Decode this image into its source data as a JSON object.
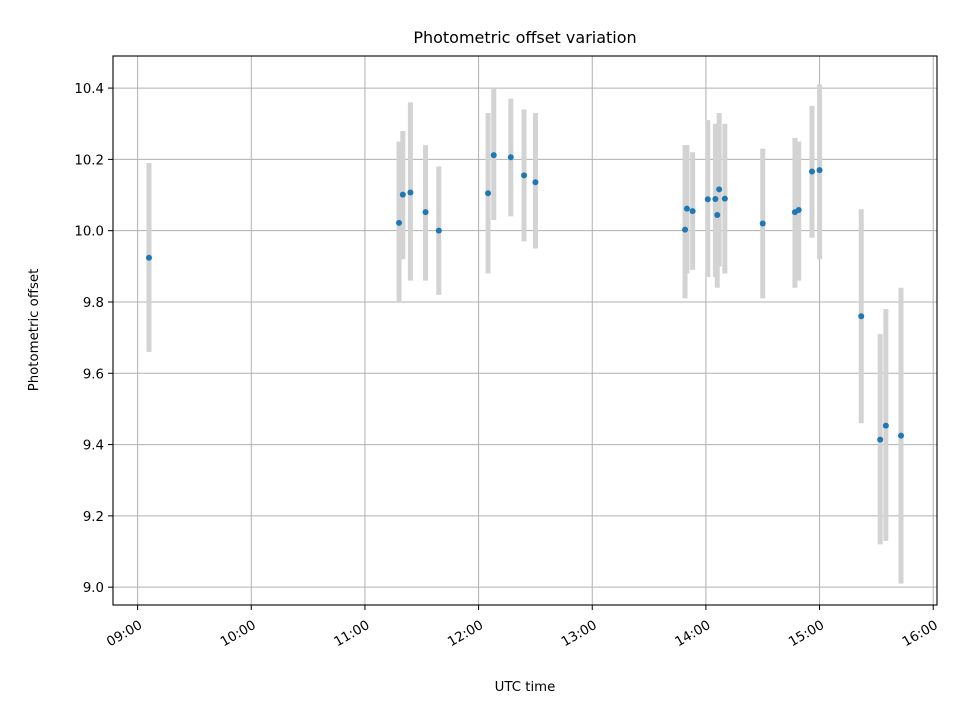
{
  "chart_data": {
    "type": "scatter",
    "title": "Photometric offset variation",
    "xlabel": "UTC time",
    "ylabel": "Photometric offset",
    "x_tick_labels": [
      "09:00",
      "10:00",
      "11:00",
      "12:00",
      "13:00",
      "14:00",
      "15:00",
      "16:00"
    ],
    "y_tick_labels": [
      "9.0",
      "9.2",
      "9.4",
      "9.6",
      "9.8",
      "10.0",
      "10.2",
      "10.4"
    ],
    "xlim": [
      "08:47",
      "16:02"
    ],
    "ylim": [
      8.95,
      10.49
    ],
    "grid": true,
    "point_color": "#1f77b4",
    "errorbar_color": "#d3d3d3",
    "points": [
      {
        "x": "09:06",
        "y": 9.924,
        "ylow": 9.66,
        "yhigh": 10.19
      },
      {
        "x": "11:18",
        "y": 10.022,
        "ylow": 9.8,
        "yhigh": 10.25
      },
      {
        "x": "11:20",
        "y": 10.101,
        "ylow": 9.92,
        "yhigh": 10.28
      },
      {
        "x": "11:24",
        "y": 10.107,
        "ylow": 9.86,
        "yhigh": 10.36
      },
      {
        "x": "11:32",
        "y": 10.052,
        "ylow": 9.86,
        "yhigh": 10.24
      },
      {
        "x": "11:39",
        "y": 10.0,
        "ylow": 9.82,
        "yhigh": 10.18
      },
      {
        "x": "12:05",
        "y": 10.105,
        "ylow": 9.88,
        "yhigh": 10.33
      },
      {
        "x": "12:08",
        "y": 10.212,
        "ylow": 10.03,
        "yhigh": 10.4
      },
      {
        "x": "12:17",
        "y": 10.206,
        "ylow": 10.04,
        "yhigh": 10.37
      },
      {
        "x": "12:24",
        "y": 10.155,
        "ylow": 9.97,
        "yhigh": 10.34
      },
      {
        "x": "12:30",
        "y": 10.136,
        "ylow": 9.95,
        "yhigh": 10.33
      },
      {
        "x": "13:49",
        "y": 10.003,
        "ylow": 9.81,
        "yhigh": 10.24
      },
      {
        "x": "13:50",
        "y": 10.062,
        "ylow": 9.88,
        "yhigh": 10.24
      },
      {
        "x": "13:53",
        "y": 10.055,
        "ylow": 9.89,
        "yhigh": 10.22
      },
      {
        "x": "14:01",
        "y": 10.088,
        "ylow": 9.87,
        "yhigh": 10.31
      },
      {
        "x": "14:05",
        "y": 10.089,
        "ylow": 9.87,
        "yhigh": 10.3
      },
      {
        "x": "14:06",
        "y": 10.044,
        "ylow": 9.84,
        "yhigh": 10.25
      },
      {
        "x": "14:07",
        "y": 10.116,
        "ylow": 9.9,
        "yhigh": 10.33
      },
      {
        "x": "14:10",
        "y": 10.09,
        "ylow": 9.88,
        "yhigh": 10.3
      },
      {
        "x": "14:30",
        "y": 10.02,
        "ylow": 9.81,
        "yhigh": 10.23
      },
      {
        "x": "14:47",
        "y": 10.052,
        "ylow": 9.84,
        "yhigh": 10.26
      },
      {
        "x": "14:49",
        "y": 10.058,
        "ylow": 9.86,
        "yhigh": 10.25
      },
      {
        "x": "14:56",
        "y": 10.166,
        "ylow": 9.98,
        "yhigh": 10.35
      },
      {
        "x": "15:00",
        "y": 10.17,
        "ylow": 9.92,
        "yhigh": 10.41
      },
      {
        "x": "15:22",
        "y": 9.76,
        "ylow": 9.46,
        "yhigh": 10.06
      },
      {
        "x": "15:32",
        "y": 9.414,
        "ylow": 9.12,
        "yhigh": 9.71
      },
      {
        "x": "15:35",
        "y": 9.453,
        "ylow": 9.13,
        "yhigh": 9.78
      },
      {
        "x": "15:43",
        "y": 9.425,
        "ylow": 9.01,
        "yhigh": 9.84
      }
    ]
  }
}
